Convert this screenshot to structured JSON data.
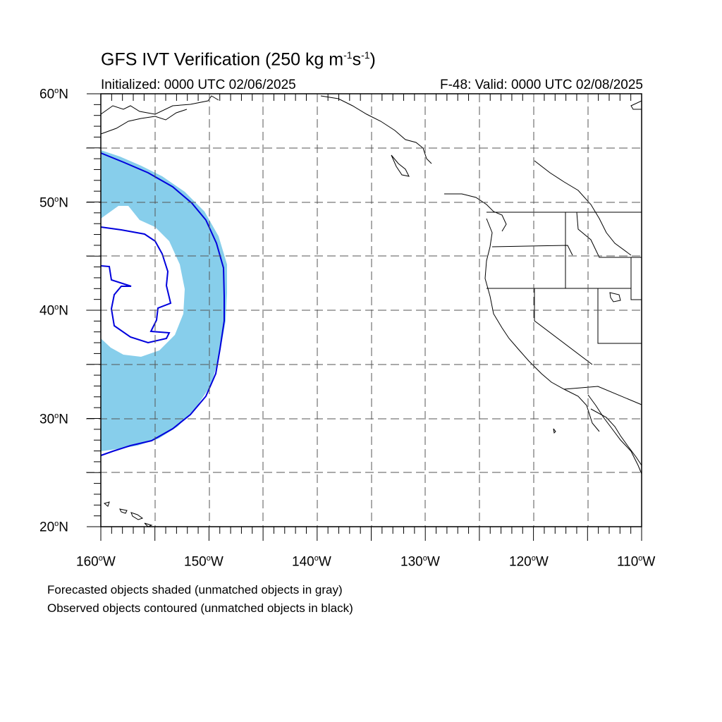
{
  "title": {
    "main": "GFS IVT Verification (250 kg m",
    "exp1": "-1",
    "mid": "s",
    "exp2": "-1",
    "end": ")"
  },
  "subtitle": {
    "initialized": "Initialized: 0000 UTC 02/06/2025",
    "valid": "F-48: Valid: 0000 UTC 02/08/2025"
  },
  "y_axis": [
    {
      "num": "60",
      "suffix": "N"
    },
    {
      "num": "50",
      "suffix": "N"
    },
    {
      "num": "40",
      "suffix": "N"
    },
    {
      "num": "30",
      "suffix": "N"
    },
    {
      "num": "20",
      "suffix": "N"
    }
  ],
  "x_axis": [
    {
      "num": "160",
      "suffix": "W"
    },
    {
      "num": "150",
      "suffix": "W"
    },
    {
      "num": "140",
      "suffix": "W"
    },
    {
      "num": "130",
      "suffix": "W"
    },
    {
      "num": "120",
      "suffix": "W"
    },
    {
      "num": "110",
      "suffix": "W"
    }
  ],
  "degree_symbol": "o",
  "notes": {
    "forecast": "Forecasted objects shaded (unmatched objects in gray)",
    "observed": "Observed objects contoured (unmatched objects in black)"
  },
  "colors": {
    "forecast_fill": "#87ceeb",
    "observed_contour": "#0000dd",
    "coastline": "#000000",
    "grid": "#555555"
  }
}
